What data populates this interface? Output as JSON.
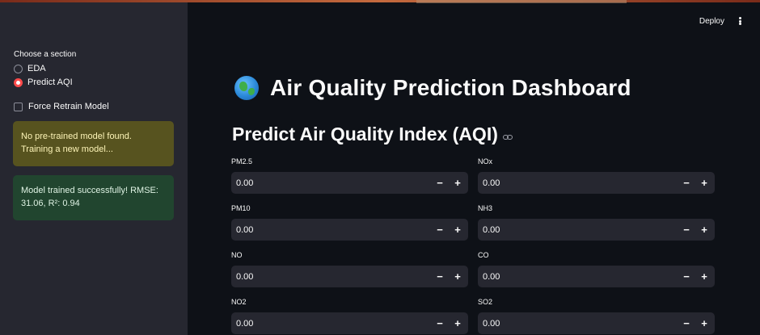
{
  "sidebar": {
    "section_label": "Choose a section",
    "options": [
      {
        "label": "EDA",
        "selected": false
      },
      {
        "label": "Predict AQI",
        "selected": true
      }
    ],
    "force_retrain_label": "Force Retrain Model",
    "force_retrain_checked": false,
    "warning_message": "No pre-trained model found. Training a new model...",
    "success_message": "Model trained successfully! RMSE: 31.06, R²: 0.94"
  },
  "header": {
    "deploy_label": "Deploy",
    "menu_icon": "more-vertical-icon"
  },
  "main": {
    "title": "Air Quality Prediction Dashboard",
    "title_icon": "globe-icon",
    "subtitle": "Predict Air Quality Index (AQI)",
    "subtitle_icon": "link-icon",
    "fields": [
      {
        "label": "PM2.5",
        "value": "0.00"
      },
      {
        "label": "NOx",
        "value": "0.00"
      },
      {
        "label": "PM10",
        "value": "0.00"
      },
      {
        "label": "NH3",
        "value": "0.00"
      },
      {
        "label": "NO",
        "value": "0.00"
      },
      {
        "label": "CO",
        "value": "0.00"
      },
      {
        "label": "NO2",
        "value": "0.00"
      },
      {
        "label": "SO2",
        "value": "0.00"
      }
    ],
    "stepper": {
      "minus": "−",
      "plus": "+"
    }
  },
  "colors": {
    "accent": "#ff4b4b",
    "sidebar_bg": "#262730",
    "main_bg": "#0e1117",
    "warning_bg": "#57531f",
    "success_bg": "#21452f"
  }
}
